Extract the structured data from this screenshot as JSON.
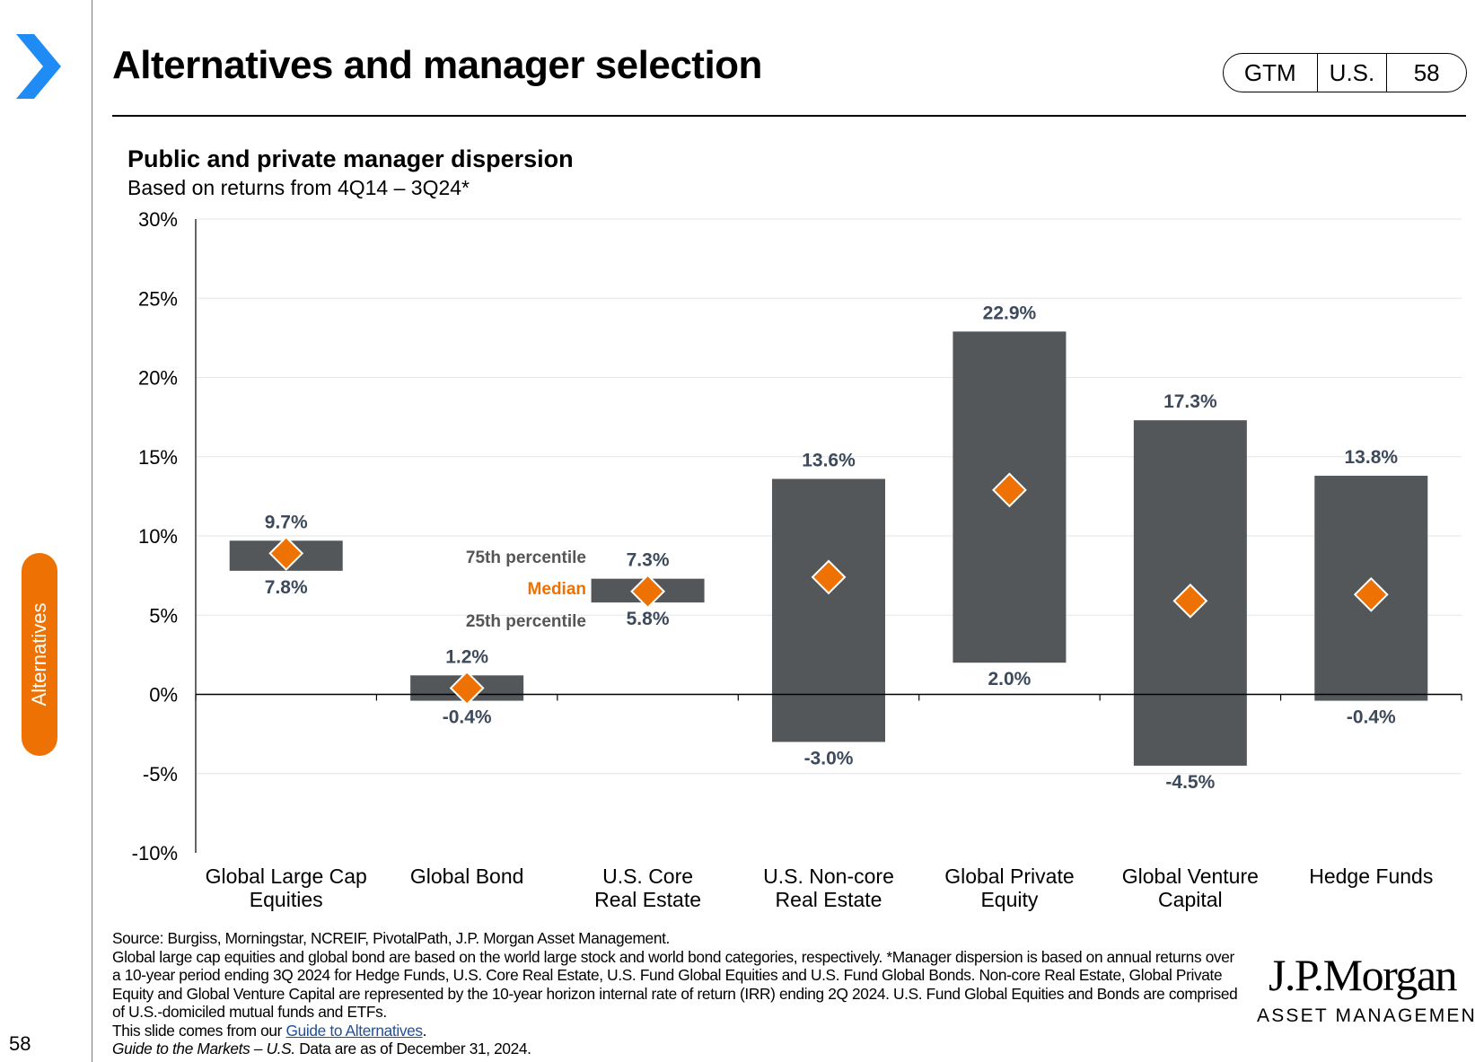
{
  "header": {
    "title": "Alternatives and manager selection",
    "badge": [
      "GTM",
      "U.S.",
      "58"
    ]
  },
  "sidebar": {
    "tab_label": "Alternatives",
    "page_number": "58"
  },
  "colors": {
    "accent": "#ee7203",
    "bar": "#54575a",
    "chevron": "#1f8cf5",
    "label": "#3d4a5c"
  },
  "chart_data": {
    "type": "bar",
    "title": "Public and private manager dispersion",
    "subtitle": "Based on returns from 4Q14 – 3Q24*",
    "categories": [
      "Global Large Cap\nEquities",
      "Global Bond",
      "U.S. Core\nReal Estate",
      "U.S. Non-core\nReal Estate",
      "Global Private\nEquity",
      "Global Venture\nCapital",
      "Hedge Funds"
    ],
    "series": [
      {
        "name": "75th percentile",
        "values": [
          9.7,
          1.2,
          7.3,
          13.6,
          22.9,
          17.3,
          13.8
        ]
      },
      {
        "name": "Median",
        "values": [
          8.9,
          0.4,
          6.5,
          7.4,
          12.9,
          5.9,
          6.3
        ]
      },
      {
        "name": "25th percentile",
        "values": [
          7.8,
          -0.4,
          5.8,
          -3.0,
          2.0,
          -4.5,
          -0.4
        ]
      }
    ],
    "top_labels": [
      "9.7%",
      "1.2%",
      "7.3%",
      "13.6%",
      "22.9%",
      "17.3%",
      "13.8%"
    ],
    "bottom_labels": [
      "7.8%",
      "-0.4%",
      "5.8%",
      "-3.0%",
      "2.0%",
      "-4.5%",
      "-0.4%"
    ],
    "yticks": [
      "30%",
      "25%",
      "20%",
      "15%",
      "10%",
      "5%",
      "0%",
      "-5%",
      "-10%"
    ],
    "ylim": [
      -10,
      30
    ],
    "grid": true,
    "legend": {
      "items": [
        "75th percentile",
        "Median",
        "25th percentile"
      ],
      "placement": "inside, beside Global Bond / U.S. Core Real Estate"
    }
  },
  "footer": {
    "source": "Source: Burgiss, Morningstar, NCREIF, PivotalPath, J.P. Morgan Asset Management.",
    "note": "Global large cap equities and global bond are based on the world large stock and world bond categories, respectively. *Manager dispersion is based on annual returns over a 10-year period ending 3Q 2024 for Hedge Funds, U.S. Core Real Estate, U.S. Fund Global Equities and U.S. Fund Global Bonds. Non-core Real Estate, Global Private Equity and Global Venture Capital are represented by the 10-year horizon internal rate of return (IRR) ending 2Q 2024. U.S. Fund Global Equities and Bonds are comprised of U.S.-domiciled mutual funds and ETFs.",
    "slide_from": "This slide comes from our",
    "link": "Guide to Alternatives",
    "period": ".",
    "gtm_italic": "Guide to the Markets – U.S.",
    "asof": "Data are as of December 31, 2024."
  },
  "logo": {
    "line1": "J.P.Morgan",
    "line2": "ASSET MANAGEMENT"
  }
}
